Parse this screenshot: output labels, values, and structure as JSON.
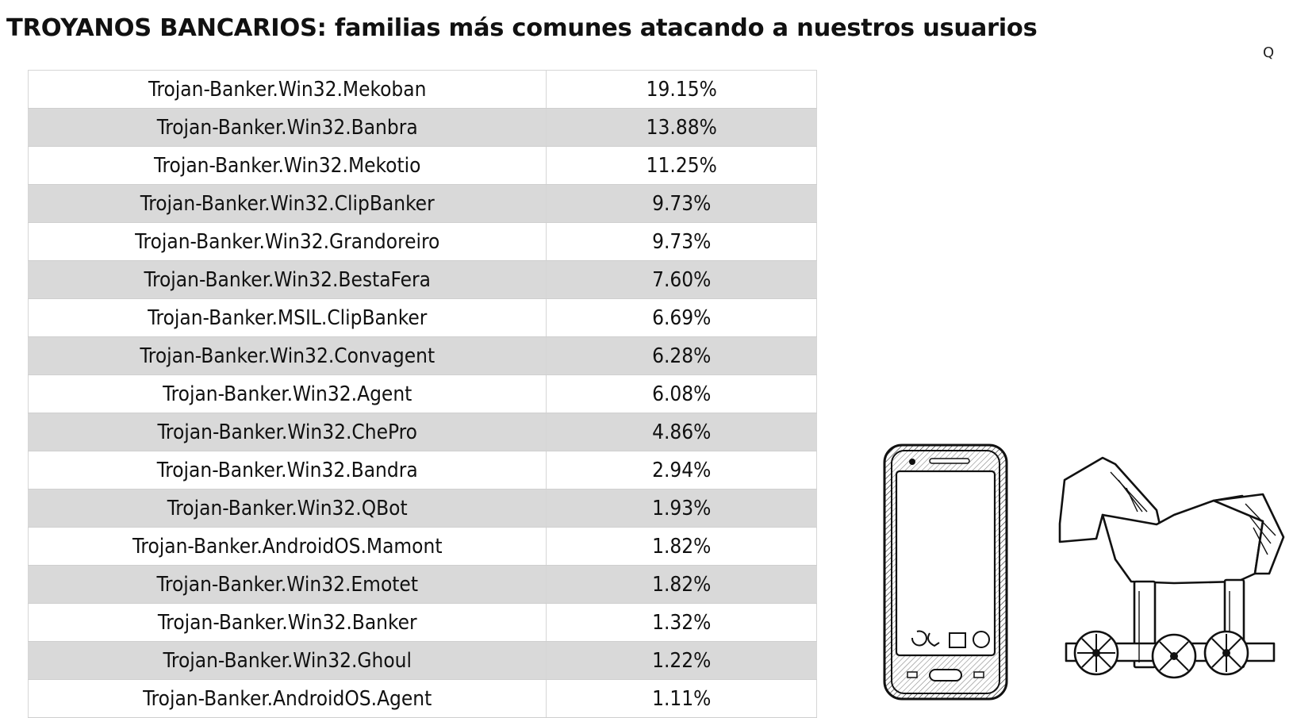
{
  "title": "TROYANOS BANCARIOS: familias más comunes atacando a nuestros usuarios",
  "header": {
    "search_glyph": "Q"
  },
  "chart_data": {
    "type": "table",
    "rows": [
      {
        "family": "Trojan-Banker.Win32.Mekoban",
        "share": "19.15%"
      },
      {
        "family": "Trojan-Banker.Win32.Banbra",
        "share": "13.88%"
      },
      {
        "family": "Trojan-Banker.Win32.Mekotio",
        "share": "11.25%"
      },
      {
        "family": "Trojan-Banker.Win32.ClipBanker",
        "share": "9.73%"
      },
      {
        "family": "Trojan-Banker.Win32.Grandoreiro",
        "share": "9.73%"
      },
      {
        "family": "Trojan-Banker.Win32.BestaFera",
        "share": "7.60%"
      },
      {
        "family": "Trojan-Banker.MSIL.ClipBanker",
        "share": "6.69%"
      },
      {
        "family": "Trojan-Banker.Win32.Convagent",
        "share": "6.28%"
      },
      {
        "family": "Trojan-Banker.Win32.Agent",
        "share": "6.08%"
      },
      {
        "family": "Trojan-Banker.Win32.ChePro",
        "share": "4.86%"
      },
      {
        "family": "Trojan-Banker.Win32.Bandra",
        "share": "2.94%"
      },
      {
        "family": "Trojan-Banker.Win32.QBot",
        "share": "1.93%"
      },
      {
        "family": "Trojan-Banker.AndroidOS.Mamont",
        "share": "1.82%"
      },
      {
        "family": "Trojan-Banker.Win32.Emotet",
        "share": "1.82%"
      },
      {
        "family": "Trojan-Banker.Win32.Banker",
        "share": "1.32%"
      },
      {
        "family": "Trojan-Banker.Win32.Ghoul",
        "share": "1.22%"
      },
      {
        "family": "Trojan-Banker.AndroidOS.Agent",
        "share": "1.11%"
      }
    ],
    "row_stripe_color": "#d9d9d9"
  },
  "illustrations": [
    "smartphone-illustration",
    "trojan-horse-illustration"
  ]
}
